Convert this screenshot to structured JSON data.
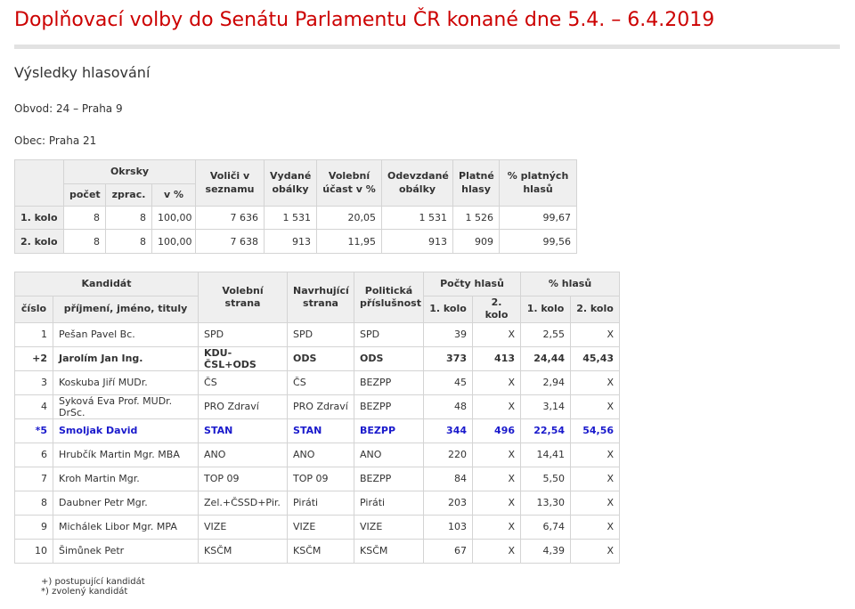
{
  "title": "Doplňovací volby do Senátu Parlamentu ČR konané dne 5.4. – 6.4.2019",
  "subtitle": "Výsledky hlasování",
  "obvod": "Obvod: 24 – Praha 9",
  "obec": "Obec: Praha 21",
  "summary": {
    "headers": {
      "okrsky": "Okrsky",
      "pocet": "počet",
      "zprac": "zprac.",
      "vpct": "v %",
      "volici": "Voliči v seznamu",
      "vydane": "Vydané obálky",
      "ucast": "Volební účast v %",
      "odevzdane": "Odevzdané obálky",
      "platne": "Platné hlasy",
      "pct_platnych": "% platných hlasů"
    },
    "rows": [
      {
        "label": "1. kolo",
        "pocet": "8",
        "zprac": "8",
        "vpct": "100,00",
        "volici": "7 636",
        "vydane": "1 531",
        "ucast": "20,05",
        "odevzdane": "1 531",
        "platne": "1 526",
        "pct_platnych": "99,67"
      },
      {
        "label": "2. kolo",
        "pocet": "8",
        "zprac": "8",
        "vpct": "100,00",
        "volici": "7 638",
        "vydane": "913",
        "ucast": "11,95",
        "odevzdane": "913",
        "platne": "909",
        "pct_platnych": "99,56"
      }
    ]
  },
  "candidates": {
    "headers": {
      "kandidat": "Kandidát",
      "cislo": "číslo",
      "jmeno": "příjmení, jméno, tituly",
      "volebni_strana": "Volební strana",
      "navrhujici_strana": "Navrhující strana",
      "politicka_prislusnost": "Politická příslušnost",
      "pocty_hlasu": "Počty hlasů",
      "pct_hlasu": "% hlasů",
      "kolo1": "1. kolo",
      "kolo2": "2. kolo"
    },
    "rows": [
      {
        "cislo": "1",
        "jmeno": "Pešan Pavel Bc.",
        "volebni": "SPD",
        "navrhujici": "SPD",
        "prislusnost": "SPD",
        "h1": "39",
        "h2": "X",
        "p1": "2,55",
        "p2": "X",
        "style": ""
      },
      {
        "cislo": "+2",
        "jmeno": "Jarolím Jan Ing.",
        "volebni": "KDU-ČSL+ODS",
        "navrhujici": "ODS",
        "prislusnost": "ODS",
        "h1": "373",
        "h2": "413",
        "p1": "24,44",
        "p2": "45,43",
        "style": "b"
      },
      {
        "cislo": "3",
        "jmeno": "Koskuba Jiří MUDr.",
        "volebni": "ČS",
        "navrhujici": "ČS",
        "prislusnost": "BEZPP",
        "h1": "45",
        "h2": "X",
        "p1": "2,94",
        "p2": "X",
        "style": ""
      },
      {
        "cislo": "4",
        "jmeno": "Syková Eva Prof. MUDr. DrSc.",
        "volebni": "PRO Zdraví",
        "navrhujici": "PRO Zdraví",
        "prislusnost": "BEZPP",
        "h1": "48",
        "h2": "X",
        "p1": "3,14",
        "p2": "X",
        "style": ""
      },
      {
        "cislo": "*5",
        "jmeno": "Smoljak David",
        "volebni": "STAN",
        "navrhujici": "STAN",
        "prislusnost": "BEZPP",
        "h1": "344",
        "h2": "496",
        "p1": "22,54",
        "p2": "54,56",
        "style": "w"
      },
      {
        "cislo": "6",
        "jmeno": "Hrubčík Martin Mgr. MBA",
        "volebni": "ANO",
        "navrhujici": "ANO",
        "prislusnost": "ANO",
        "h1": "220",
        "h2": "X",
        "p1": "14,41",
        "p2": "X",
        "style": ""
      },
      {
        "cislo": "7",
        "jmeno": "Kroh Martin Mgr.",
        "volebni": "TOP 09",
        "navrhujici": "TOP 09",
        "prislusnost": "BEZPP",
        "h1": "84",
        "h2": "X",
        "p1": "5,50",
        "p2": "X",
        "style": ""
      },
      {
        "cislo": "8",
        "jmeno": "Daubner Petr Mgr.",
        "volebni": "Zel.+ČSSD+Pir.",
        "navrhujici": "Piráti",
        "prislusnost": "Piráti",
        "h1": "203",
        "h2": "X",
        "p1": "13,30",
        "p2": "X",
        "style": ""
      },
      {
        "cislo": "9",
        "jmeno": "Michálek Libor Mgr. MPA",
        "volebni": "VIZE",
        "navrhujici": "VIZE",
        "prislusnost": "VIZE",
        "h1": "103",
        "h2": "X",
        "p1": "6,74",
        "p2": "X",
        "style": ""
      },
      {
        "cislo": "10",
        "jmeno": "Šimůnek Petr",
        "volebni": "KSČM",
        "navrhujici": "KSČM",
        "prislusnost": "KSČM",
        "h1": "67",
        "h2": "X",
        "p1": "4,39",
        "p2": "X",
        "style": ""
      }
    ]
  },
  "notes": [
    "+) postupující kandidát",
    "*) zvolený kandidát"
  ],
  "colors": {
    "title": "#cc0000",
    "elected": "#1a1acc",
    "header_bg": "#efefef",
    "border": "#d4d4d4"
  }
}
